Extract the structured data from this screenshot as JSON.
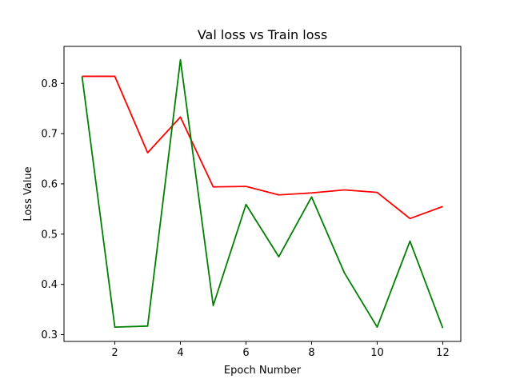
{
  "chart_data": {
    "type": "line",
    "title": "Val loss vs Train loss",
    "xlabel": "Epoch Number",
    "ylabel": "Loss Value",
    "x": [
      1,
      2,
      3,
      4,
      5,
      6,
      7,
      8,
      9,
      10,
      11,
      12
    ],
    "xlim": [
      0.45,
      12.55
    ],
    "ylim": [
      0.2865,
      0.8736
    ],
    "xticks": [
      2,
      4,
      6,
      8,
      10,
      12
    ],
    "xtick_labels": [
      "2",
      "4",
      "6",
      "8",
      "10",
      "12"
    ],
    "yticks": [
      0.3,
      0.4,
      0.5,
      0.6,
      0.7,
      0.8
    ],
    "ytick_labels": [
      "0.3",
      "0.4",
      "0.5",
      "0.6",
      "0.7",
      "0.8"
    ],
    "grid": false,
    "legend": "none",
    "series": [
      {
        "color": "#ff0000",
        "values": [
          0.814,
          0.814,
          0.662,
          0.733,
          0.594,
          0.595,
          0.578,
          0.582,
          0.588,
          0.583,
          0.531,
          0.555
        ]
      },
      {
        "color": "#008000",
        "values": [
          0.814,
          0.315,
          0.317,
          0.847,
          0.358,
          0.559,
          0.455,
          0.574,
          0.423,
          0.315,
          0.486,
          0.313
        ]
      }
    ]
  }
}
